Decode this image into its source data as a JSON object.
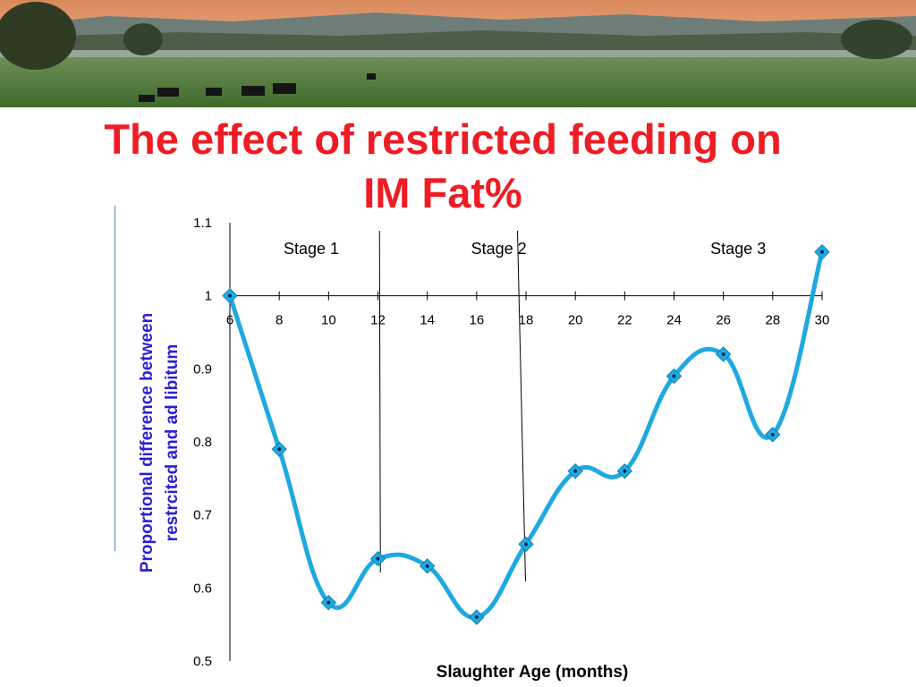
{
  "slide": {
    "title_line1": "The effect of restricted feeding on",
    "title_line2": "IM Fat%"
  },
  "colors": {
    "title": "#ee1c24",
    "series": "#1fa9e1",
    "ylabel": "#2b1fd1",
    "deco_line": "#4f81bd"
  },
  "chart_data": {
    "type": "line",
    "title": "",
    "xlabel": "Slaughter Age (months)",
    "ylabel_lines": [
      "Proportional difference between",
      "restrcited and ad libitum"
    ],
    "x": [
      6,
      8,
      10,
      12,
      14,
      16,
      18,
      20,
      22,
      24,
      26,
      28,
      30
    ],
    "x_ticks": [
      "6",
      "8",
      "10",
      "12",
      "14",
      "16",
      "18",
      "20",
      "22",
      "24",
      "26",
      "28",
      "30"
    ],
    "y_ticks": [
      "0.5",
      "0.6",
      "0.7",
      "0.8",
      "0.9",
      "1",
      "1.1"
    ],
    "ylim": [
      0.5,
      1.1
    ],
    "xlim": [
      6,
      30
    ],
    "x_axis_crosses_at": 1,
    "series": [
      {
        "values": [
          1.0,
          0.79,
          0.58,
          0.64,
          0.63,
          0.56,
          0.66,
          0.76,
          0.76,
          0.89,
          0.92,
          0.81,
          1.06
        ],
        "smooth": true,
        "marker": "diamond"
      }
    ],
    "stages": [
      {
        "label": "Stage 1",
        "x": 9.3
      },
      {
        "label": "Stage 2",
        "x": 16.9
      },
      {
        "label": "Stage 3",
        "x": 26.6
      }
    ],
    "stage_boundaries": [
      12.1,
      17.8
    ],
    "grid": false,
    "legend": "none"
  }
}
